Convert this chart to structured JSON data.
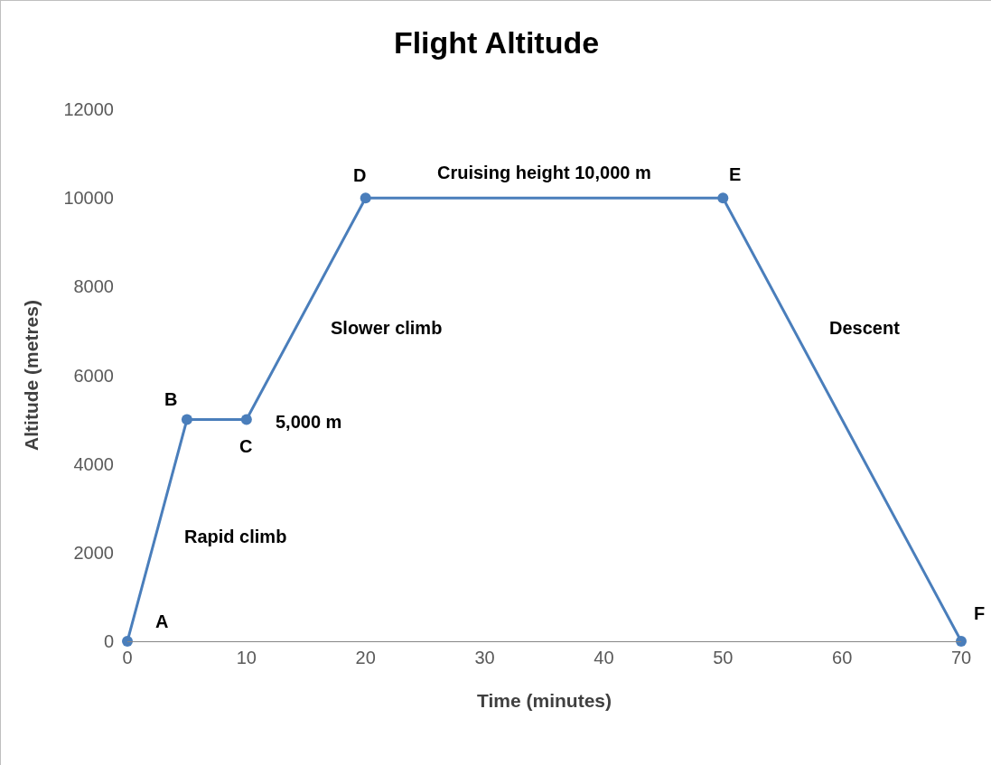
{
  "chart_data": {
    "type": "line",
    "title": "Flight Altitude",
    "xlabel": "Time (minutes)",
    "ylabel": "Altitude (metres)",
    "x": [
      0,
      5,
      10,
      20,
      50,
      70
    ],
    "series": [
      {
        "color": "#4a7ebb",
        "values": [
          0,
          5000,
          5000,
          10000,
          10000,
          0
        ]
      }
    ],
    "xlim": [
      0,
      70
    ],
    "xticks": [
      0,
      10,
      20,
      30,
      40,
      50,
      60,
      70
    ],
    "ylim": [
      0,
      12000
    ],
    "yticks": [
      0,
      2000,
      4000,
      6000,
      8000,
      10000,
      12000
    ],
    "grid": false,
    "marker": "circle",
    "line_style": "solid",
    "annotations": [
      {
        "text": "A",
        "x": 0,
        "y": 0
      },
      {
        "text": "B",
        "x": 5,
        "y": 5000
      },
      {
        "text": "C",
        "x": 10,
        "y": 5000
      },
      {
        "text": "D",
        "x": 20,
        "y": 10000
      },
      {
        "text": "E",
        "x": 50,
        "y": 10000
      },
      {
        "text": "F",
        "x": 70,
        "y": 0
      },
      {
        "text": "5,000 m",
        "x": 10,
        "y": 5000
      },
      {
        "text": "Rapid climb",
        "x": 2.5,
        "y": 2500
      },
      {
        "text": "Slower climb",
        "x": 15,
        "y": 7500
      },
      {
        "text": "Cruising height 10,000 m",
        "x": 35,
        "y": 10000
      },
      {
        "text": "Descent",
        "x": 56,
        "y": 7000
      }
    ]
  }
}
